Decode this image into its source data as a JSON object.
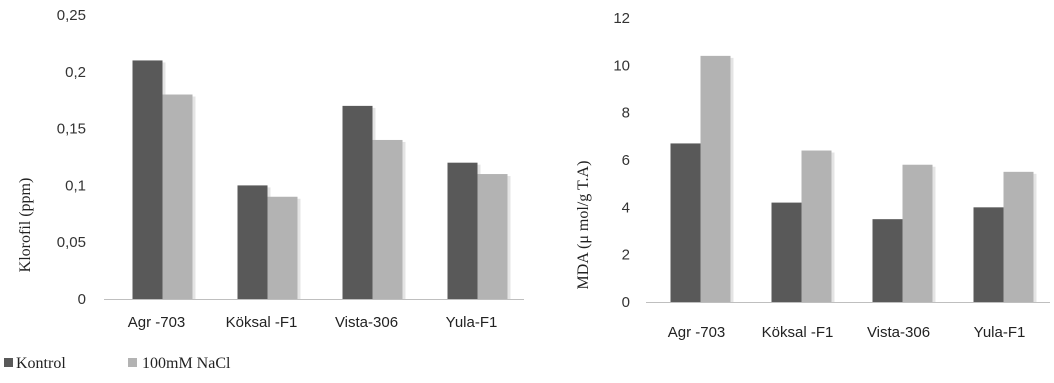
{
  "colors": {
    "kontrol": "#595959",
    "nacl": "#b3b3b3",
    "axis": "#bfbfbf"
  },
  "legend": [
    {
      "label": "Kontrol",
      "color": "#595959"
    },
    {
      "label": "100mM NaCl",
      "color": "#b3b3b3"
    }
  ],
  "chart_data": [
    {
      "type": "bar",
      "categories": [
        "Agr -703",
        "Köksal -F1",
        "Vista-306",
        "Yula-F1"
      ],
      "series": [
        {
          "name": "Kontrol",
          "values": [
            0.21,
            0.1,
            0.17,
            0.12
          ]
        },
        {
          "name": "100mM NaCl",
          "values": [
            0.18,
            0.09,
            0.14,
            0.11
          ]
        }
      ],
      "title": "",
      "xlabel": "",
      "ylabel": "Klorofil (ppm)",
      "ylim": [
        0,
        0.25
      ],
      "yticks": [
        "0",
        "0,05",
        "0,1",
        "0,15",
        "0,2",
        "0,25"
      ],
      "grid": false,
      "legend_position": "bottom-left"
    },
    {
      "type": "bar",
      "categories": [
        "Agr -703",
        "Köksal -F1",
        "Vista-306",
        "Yula-F1"
      ],
      "series": [
        {
          "name": "Kontrol",
          "values": [
            6.7,
            4.2,
            3.5,
            4.0
          ]
        },
        {
          "name": "100mM NaCl",
          "values": [
            10.4,
            6.4,
            5.8,
            5.5
          ]
        }
      ],
      "title": "",
      "xlabel": "",
      "ylabel": "MDA (μ mol/g T.A)",
      "ylim": [
        0,
        12
      ],
      "yticks": [
        "0",
        "2",
        "4",
        "6",
        "8",
        "10",
        "12"
      ],
      "grid": false,
      "legend_position": "none"
    }
  ]
}
